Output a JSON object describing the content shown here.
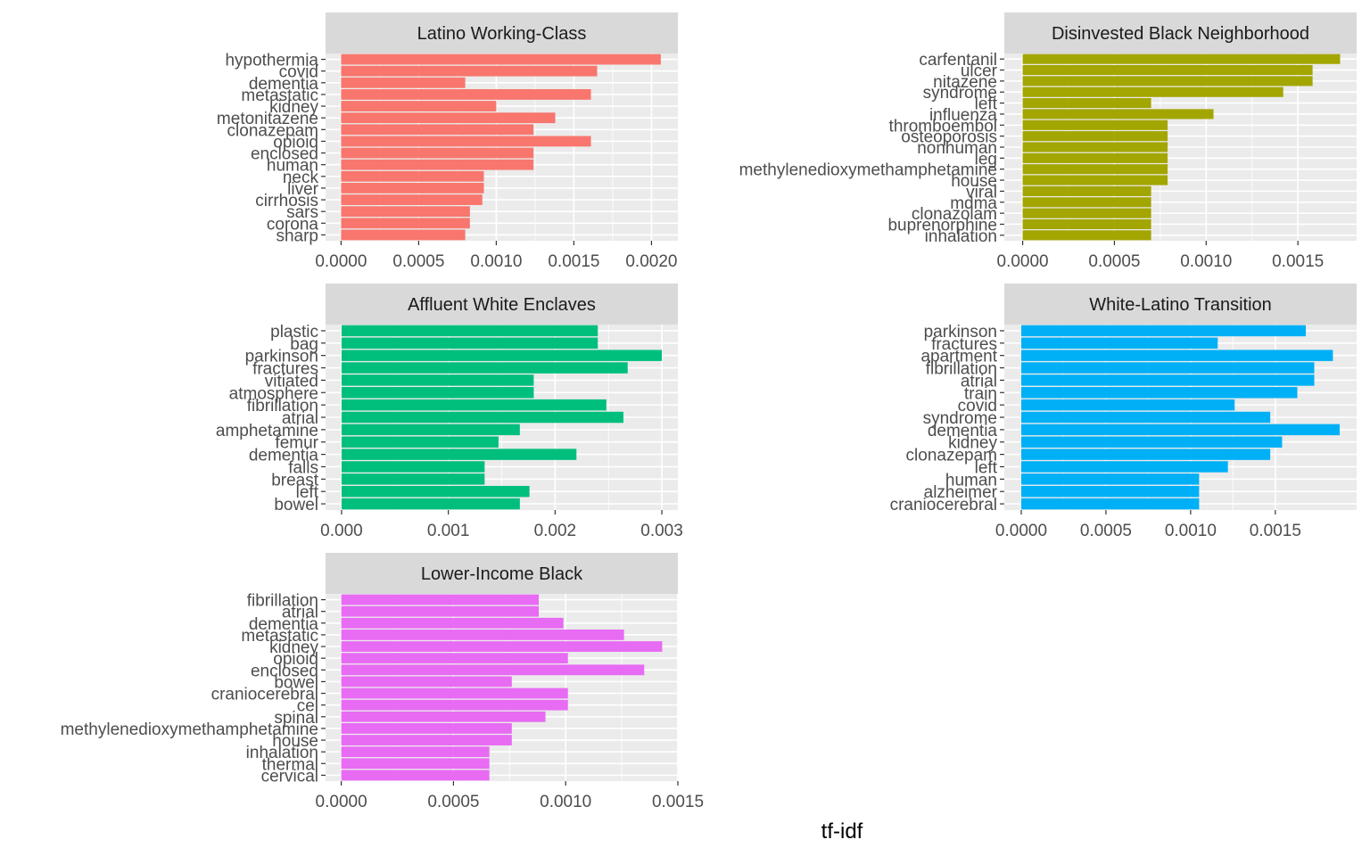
{
  "figure": {
    "xlabel": "tf-idf"
  },
  "chart_data": [
    {
      "type": "bar",
      "orientation": "horizontal",
      "title": "Latino Working-Class",
      "color": "#F8766D",
      "categories": [
        "hypothermia",
        "covid",
        "dementia",
        "metastatic",
        "kidney",
        "metonitazene",
        "clonazepam",
        "opioid",
        "enclosed",
        "human",
        "neck",
        "liver",
        "cirrhosis",
        "sars",
        "corona",
        "sharp"
      ],
      "values": [
        0.00206,
        0.00165,
        0.0008,
        0.00161,
        0.001,
        0.00138,
        0.00124,
        0.00161,
        0.00124,
        0.00124,
        0.00092,
        0.00092,
        0.00091,
        0.00083,
        0.00083,
        0.0008
      ],
      "xlim": [
        -0.0001,
        0.00217
      ],
      "xticks": [
        0.0,
        0.0005,
        0.001,
        0.0015,
        0.002
      ],
      "xtick_labels": [
        "0.0000",
        "0.0005",
        "0.0010",
        "0.0015",
        "0.0020"
      ]
    },
    {
      "type": "bar",
      "orientation": "horizontal",
      "title": "Disinvested Black Neighborhood",
      "color": "#A3A500",
      "categories": [
        "carfentanil",
        "ulcer",
        "nitazene",
        "syndrome",
        "left",
        "influenza",
        "thromboembol",
        "osteoporosis",
        "nonhuman",
        "leg",
        "methylenedioxymethamphetamine",
        "house",
        "viral",
        "mdma",
        "clonazolam",
        "buprenorphine",
        "inhalation"
      ],
      "values": [
        0.00173,
        0.00158,
        0.00158,
        0.00142,
        0.0007,
        0.00104,
        0.00079,
        0.00079,
        0.00079,
        0.00079,
        0.00079,
        0.00079,
        0.0007,
        0.0007,
        0.0007,
        0.0007,
        0.0007
      ],
      "xlim": [
        -0.0001,
        0.00182
      ],
      "xticks": [
        0.0,
        0.0005,
        0.001,
        0.0015
      ],
      "xtick_labels": [
        "0.0000",
        "0.0005",
        "0.0010",
        "0.0015"
      ]
    },
    {
      "type": "bar",
      "orientation": "horizontal",
      "title": "Affluent White Enclaves",
      "color": "#00BF7D",
      "categories": [
        "plastic",
        "bag",
        "parkinson",
        "fractures",
        "vitiated",
        "atmosphere",
        "fibrillation",
        "atrial",
        "amphetamine",
        "femur",
        "dementia",
        "falls",
        "breast",
        "left",
        "bowel"
      ],
      "values": [
        0.0024,
        0.0024,
        0.003,
        0.00268,
        0.0018,
        0.0018,
        0.00248,
        0.00264,
        0.00167,
        0.00147,
        0.0022,
        0.00134,
        0.00134,
        0.00176,
        0.00167
      ],
      "xlim": [
        -0.00015,
        0.00315
      ],
      "xticks": [
        0.0,
        0.001,
        0.002,
        0.003
      ],
      "xtick_labels": [
        "0.000",
        "0.001",
        "0.002",
        "0.003"
      ]
    },
    {
      "type": "bar",
      "orientation": "horizontal",
      "title": "White-Latino Transition",
      "color": "#00B0F6",
      "categories": [
        "parkinson",
        "fractures",
        "apartment",
        "fibrillation",
        "atrial",
        "train",
        "covid",
        "syndrome",
        "dementia",
        "kidney",
        "clonazepam",
        "left",
        "human",
        "alzheimer",
        "craniocerebral"
      ],
      "values": [
        0.00168,
        0.00116,
        0.00184,
        0.00173,
        0.00173,
        0.00163,
        0.00126,
        0.00147,
        0.00188,
        0.00154,
        0.00147,
        0.00122,
        0.00105,
        0.00105,
        0.00105
      ],
      "xlim": [
        -0.0001,
        0.00198
      ],
      "xticks": [
        0.0,
        0.0005,
        0.001,
        0.0015
      ],
      "xtick_labels": [
        "0.0000",
        "0.0005",
        "0.0010",
        "0.0015"
      ]
    },
    {
      "type": "bar",
      "orientation": "horizontal",
      "title": "Lower-Income Black",
      "color": "#E76BF3",
      "categories": [
        "fibrillation",
        "atrial",
        "dementia",
        "metastatic",
        "kidney",
        "opioid",
        "enclosed",
        "bowel",
        "craniocerebral",
        "cel",
        "spinal",
        "methylenedioxymethamphetamine",
        "house",
        "inhalation",
        "thermal",
        "cervical"
      ],
      "values": [
        0.00088,
        0.00088,
        0.00099,
        0.00126,
        0.00143,
        0.00101,
        0.00135,
        0.00076,
        0.00101,
        0.00101,
        0.00091,
        0.00076,
        0.00076,
        0.00066,
        0.00066,
        0.00066
      ],
      "xlim": [
        -7e-05,
        0.0015
      ],
      "xticks": [
        0.0,
        0.0005,
        0.001,
        0.0015
      ],
      "xtick_labels": [
        "0.0000",
        "0.0005",
        "0.0010",
        "0.0015"
      ]
    }
  ]
}
